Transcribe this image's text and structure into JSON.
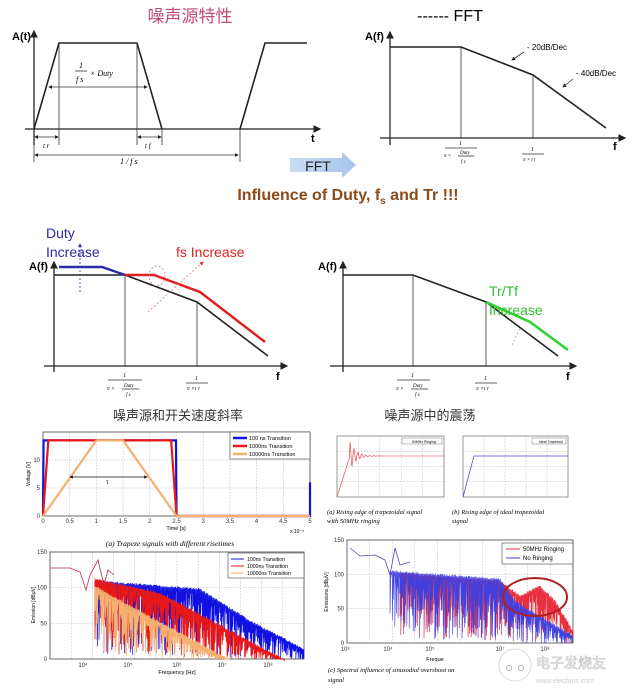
{
  "top_left": {
    "title": "噪声源特性",
    "y_label": "A(t)",
    "x_label": "t",
    "duty_num": "1",
    "duty_den": "f s",
    "duty_suffix": "× Duty",
    "tr_label": "t r",
    "tf_label": "t f",
    "period_label": "1 / f s"
  },
  "top_right": {
    "title": "------ FFT",
    "y_label": "A(f)",
    "x_label": "f",
    "slope1": "- 20dB/Dec",
    "slope2": "- 40dB/Dec",
    "corner1_num": "1",
    "corner1_den_pi": "π ×",
    "corner1_den_duty": "Duty",
    "corner1_den_fs": "f s",
    "corner2_num": "1",
    "corner2_den": "π × t r"
  },
  "fft_arrow": {
    "label": "FFT"
  },
  "headline": {
    "text_before": "Influence of Duty, f",
    "sub": "s",
    "text_after": " and Tr !!!",
    "color": "#8a4a1a"
  },
  "mid_left": {
    "y_label": "A(f)",
    "x_label": "f",
    "duty_line1": "Duty",
    "duty_line2": "Increase",
    "fs_label": "fs Increase",
    "corner1_num": "1",
    "corner1_den_pi": "π ×",
    "corner1_den_duty": "Duty",
    "corner1_den_fs": "f s",
    "corner2_num": "1",
    "corner2_den": "π ×t r",
    "colors": {
      "duty": "#2a2aa8",
      "fs": "#e02020"
    }
  },
  "mid_right": {
    "y_label": "A(f)",
    "x_label": "f",
    "tr_line1": "Tr/Tf",
    "tr_line2": "Increase",
    "corner1_num": "1",
    "corner1_den_pi": "π ×",
    "corner1_den_duty": "Duty",
    "corner1_den_fs": "f s",
    "corner2_num": "1",
    "corner2_den": "π ×t r",
    "colors": {
      "tr": "#30d030"
    }
  },
  "bottom_left": {
    "title": "噪声源和开关速度斜率",
    "time_plot": {
      "ylabel": "Voltage [V]",
      "xlabel": "Time [s]",
      "x_exp": "x 10⁻⁵",
      "x_ticks": [
        "0",
        "0.5",
        "1",
        "1.5",
        "2",
        "2.5",
        "3",
        "3.5",
        "4",
        "4.5",
        "5"
      ],
      "y_ticks": [
        "0",
        "5",
        "10"
      ],
      "tau": "τ",
      "legend": [
        "100 ns Transition",
        "1000ns Transition",
        "10000ns Transition"
      ],
      "caption": "(a) Trapeze signals with different risetimes"
    },
    "spectrum": {
      "ylabel": "Emission [dBμV]",
      "xlabel": "Frequency [Hz]",
      "y_ticks": [
        "0",
        "50",
        "100",
        "150"
      ],
      "x_ticks": [
        "10⁴",
        "10⁵",
        "10⁶",
        "10⁷",
        "10⁸"
      ],
      "legend": [
        "100ns Transition",
        "1000ns Transition",
        "10000ns Transition"
      ]
    },
    "colors": {
      "s100": "#1010e0",
      "s1000": "#e81818",
      "s10000": "#f5b070"
    }
  },
  "bottom_right": {
    "title": "噪声源中的震荡",
    "plot_a_legend": "50MHz Ringing",
    "plot_b_legend": "Ideal Trapezoid",
    "plot_a_caption_1": "(a) Rising edge of trapezoidal signal",
    "plot_a_caption_2": "with 50MHz ringing",
    "plot_b_caption_1": "(b) Rising edge of ideal trapezoidal",
    "plot_b_caption_2": "signal",
    "spectrum": {
      "ylabel": "Emissions [dBμV]",
      "xlabel": "Freque",
      "y_ticks": [
        "0",
        "50",
        "100",
        "150"
      ],
      "x_ticks": [
        "10³",
        "10⁴",
        "10⁵",
        "10⁷",
        "10⁸"
      ],
      "legend": [
        "50MHz Ringing",
        "No Ringing"
      ],
      "caption_1": "(c) Spectral influence of sinusodial overshoot on",
      "caption_2": "signal"
    },
    "watermark": "电子发烧友",
    "watermark_url": "www.elecfans.com"
  }
}
